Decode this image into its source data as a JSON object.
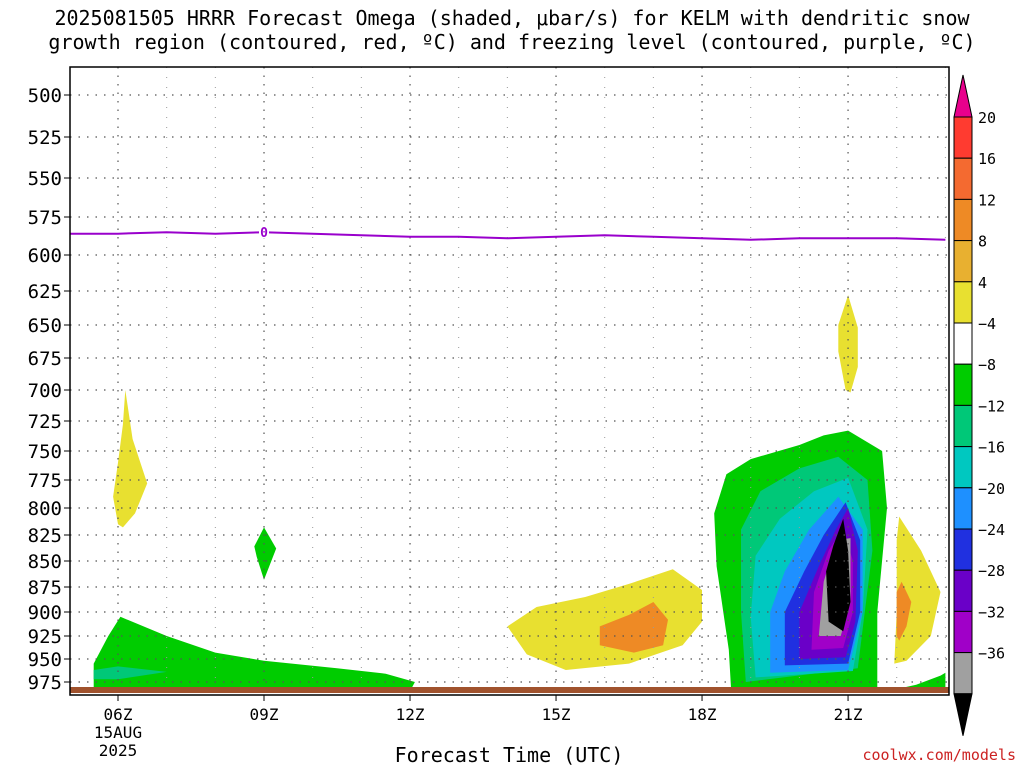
{
  "title": {
    "line1": "2025081505 HRRR Forecast Omega (shaded, μbar/s) for KELM with dendritic snow",
    "line2": "growth region (contoured, red, ºC) and freezing level (contoured, purple, ºC)"
  },
  "xlabel": "Forecast Time (UTC)",
  "credit": "coolwx.com/models",
  "chart_data": {
    "type": "area",
    "y_axis": {
      "label": "",
      "ticks": [
        500,
        525,
        550,
        575,
        600,
        625,
        650,
        675,
        700,
        725,
        750,
        775,
        800,
        825,
        850,
        875,
        900,
        925,
        950,
        975
      ],
      "range": [
        485,
        990
      ]
    },
    "x_axis": {
      "label": "Forecast Time (UTC)",
      "ticks": [
        {
          "hour": 6,
          "label": "06Z",
          "sub1": "15AUG",
          "sub2": "2025"
        },
        {
          "hour": 9,
          "label": "09Z",
          "sub1": "",
          "sub2": ""
        },
        {
          "hour": 12,
          "label": "12Z",
          "sub1": "",
          "sub2": ""
        },
        {
          "hour": 15,
          "label": "15Z",
          "sub1": "",
          "sub2": ""
        },
        {
          "hour": 18,
          "label": "18Z",
          "sub1": "",
          "sub2": ""
        },
        {
          "hour": 21,
          "label": "21Z",
          "sub1": "",
          "sub2": ""
        }
      ],
      "range": [
        5,
        23
      ]
    },
    "colorbar": {
      "label_values": [
        20,
        16,
        12,
        8,
        4,
        -4,
        -8,
        -12,
        -16,
        -20,
        -24,
        -28,
        -32,
        -36
      ],
      "labels": [
        "20",
        "16",
        "12",
        "8",
        "4",
        "−4",
        "−8",
        "−12",
        "−16",
        "−20",
        "−24",
        "−28",
        "−32",
        "−36"
      ],
      "colors": [
        "#e8008c",
        "#ff3b30",
        "#f46a30",
        "#ee8a25",
        "#e8b030",
        "#e8e030",
        "#ffffff",
        "#00cc00",
        "#00c878",
        "#00c8c0",
        "#1e90ff",
        "#2030e0",
        "#6a00c8",
        "#a000c8",
        "#a0a0a0",
        "#000000"
      ]
    },
    "freezing_level": {
      "label": "0",
      "label_at_hour": 9,
      "color": "#9900cc",
      "hours": [
        5,
        6,
        7,
        8,
        9,
        10,
        11,
        12,
        13,
        14,
        15,
        16,
        17,
        18,
        19,
        20,
        21,
        22,
        23
      ],
      "pressure": [
        586,
        586,
        585,
        586,
        585,
        586,
        587,
        588,
        588,
        589,
        588,
        587,
        588,
        589,
        590,
        589,
        589,
        589,
        590
      ]
    },
    "terrain_color": "#a0522d",
    "omega_regions": [
      {
        "name": "rise-06z-upper",
        "value": 6,
        "points": [
          [
            6.0,
            815
          ],
          [
            5.9,
            790
          ],
          [
            6.0,
            760
          ],
          [
            6.1,
            728
          ],
          [
            6.15,
            700
          ],
          [
            6.3,
            740
          ],
          [
            6.6,
            778
          ],
          [
            6.35,
            805
          ],
          [
            6.1,
            818
          ]
        ]
      },
      {
        "name": "sink-09z",
        "value": -6,
        "points": [
          [
            9.0,
            818
          ],
          [
            9.25,
            838
          ],
          [
            9.1,
            856
          ],
          [
            9.0,
            868
          ],
          [
            8.85,
            846
          ],
          [
            8.8,
            836
          ]
        ]
      },
      {
        "name": "sink-low-levels",
        "value": -6,
        "points": [
          [
            5.5,
            983
          ],
          [
            5.5,
            955
          ],
          [
            5.8,
            925
          ],
          [
            6.05,
            905
          ],
          [
            7.0,
            925
          ],
          [
            8.0,
            943
          ],
          [
            9.0,
            952
          ],
          [
            10.5,
            960
          ],
          [
            11.5,
            966
          ],
          [
            12.1,
            975
          ],
          [
            12.0,
            985
          ],
          [
            9.0,
            985
          ],
          [
            6.0,
            984
          ]
        ]
      },
      {
        "name": "sink-low-levels-core",
        "value": -10,
        "points": [
          [
            5.5,
            962
          ],
          [
            6.0,
            958
          ],
          [
            7.0,
            964
          ],
          [
            6.0,
            972
          ],
          [
            5.5,
            972
          ]
        ]
      },
      {
        "name": "rise-15z-17z",
        "value": 6,
        "points": [
          [
            14.0,
            915
          ],
          [
            14.6,
            895
          ],
          [
            15.6,
            885
          ],
          [
            16.5,
            872
          ],
          [
            17.4,
            858
          ],
          [
            18.0,
            878
          ],
          [
            18.0,
            910
          ],
          [
            17.6,
            935
          ],
          [
            16.5,
            955
          ],
          [
            15.2,
            962
          ],
          [
            14.4,
            945
          ]
        ]
      },
      {
        "name": "rise-15z-17z-core",
        "value": 10,
        "points": [
          [
            15.9,
            915
          ],
          [
            16.5,
            903
          ],
          [
            17.0,
            890
          ],
          [
            17.3,
            908
          ],
          [
            17.2,
            935
          ],
          [
            16.6,
            943
          ],
          [
            15.9,
            935
          ]
        ]
      },
      {
        "name": "rise-21z-upper",
        "value": 6,
        "points": [
          [
            20.95,
            700
          ],
          [
            20.8,
            670
          ],
          [
            20.8,
            650
          ],
          [
            21.0,
            628
          ],
          [
            21.2,
            652
          ],
          [
            21.2,
            682
          ],
          [
            21.05,
            702
          ]
        ]
      },
      {
        "name": "sink-18z-22z-outer",
        "value": -6,
        "points": [
          [
            18.6,
            985
          ],
          [
            18.55,
            940
          ],
          [
            18.3,
            855
          ],
          [
            18.25,
            805
          ],
          [
            18.5,
            770
          ],
          [
            19.0,
            757
          ],
          [
            20.0,
            745
          ],
          [
            20.5,
            737
          ],
          [
            21.0,
            733
          ],
          [
            21.7,
            750
          ],
          [
            21.8,
            800
          ],
          [
            21.6,
            900
          ],
          [
            21.6,
            985
          ],
          [
            19.5,
            985
          ]
        ]
      },
      {
        "name": "sink-18z-22z-l2",
        "value": -10,
        "points": [
          [
            18.9,
            975
          ],
          [
            18.8,
            900
          ],
          [
            18.8,
            820
          ],
          [
            19.2,
            785
          ],
          [
            20.0,
            765
          ],
          [
            20.8,
            755
          ],
          [
            21.4,
            775
          ],
          [
            21.5,
            840
          ],
          [
            21.2,
            960
          ]
        ]
      },
      {
        "name": "sink-18z-22z-l3",
        "value": -14,
        "points": [
          [
            19.1,
            970
          ],
          [
            19.0,
            905
          ],
          [
            19.1,
            845
          ],
          [
            19.6,
            810
          ],
          [
            20.3,
            785
          ],
          [
            21.0,
            773
          ],
          [
            21.4,
            820
          ],
          [
            21.3,
            900
          ],
          [
            21.1,
            963
          ]
        ]
      },
      {
        "name": "sink-18z-22z-l4",
        "value": -18,
        "points": [
          [
            19.4,
            965
          ],
          [
            19.4,
            900
          ],
          [
            19.7,
            860
          ],
          [
            20.2,
            820
          ],
          [
            20.8,
            790
          ],
          [
            21.3,
            820
          ],
          [
            21.3,
            900
          ],
          [
            21.0,
            962
          ]
        ]
      },
      {
        "name": "sink-18z-22z-l5",
        "value": -22,
        "points": [
          [
            19.7,
            957
          ],
          [
            19.7,
            900
          ],
          [
            20.1,
            860
          ],
          [
            20.5,
            825
          ],
          [
            20.95,
            795
          ],
          [
            21.25,
            830
          ],
          [
            21.25,
            900
          ],
          [
            21.0,
            955
          ]
        ]
      },
      {
        "name": "sink-18z-22z-l6",
        "value": -26,
        "points": [
          [
            20.0,
            950
          ],
          [
            20.0,
            900
          ],
          [
            20.4,
            855
          ],
          [
            20.75,
            820
          ],
          [
            21.0,
            800
          ],
          [
            21.2,
            840
          ],
          [
            21.15,
            910
          ],
          [
            20.95,
            948
          ]
        ]
      },
      {
        "name": "sink-18z-22z-l7",
        "value": -30,
        "points": [
          [
            20.25,
            940
          ],
          [
            20.3,
            880
          ],
          [
            20.6,
            840
          ],
          [
            20.9,
            818
          ],
          [
            21.1,
            850
          ],
          [
            21.1,
            900
          ],
          [
            20.9,
            938
          ]
        ]
      },
      {
        "name": "sink-18z-22z-l8",
        "value": -34,
        "points": [
          [
            20.4,
            925
          ],
          [
            20.5,
            870
          ],
          [
            20.75,
            830
          ],
          [
            21.05,
            828
          ],
          [
            21.05,
            890
          ],
          [
            20.85,
            925
          ]
        ]
      },
      {
        "name": "sink-18z-22z-core",
        "value": -38,
        "points": [
          [
            20.6,
            910
          ],
          [
            20.55,
            860
          ],
          [
            20.7,
            835
          ],
          [
            20.9,
            810
          ],
          [
            21.0,
            840
          ],
          [
            21.05,
            890
          ],
          [
            20.9,
            920
          ]
        ]
      },
      {
        "name": "rise-22z",
        "value": 6,
        "points": [
          [
            21.95,
            955
          ],
          [
            22.0,
            900
          ],
          [
            22.0,
            830
          ],
          [
            22.05,
            808
          ],
          [
            22.5,
            840
          ],
          [
            22.9,
            880
          ],
          [
            22.7,
            925
          ],
          [
            22.2,
            952
          ]
        ]
      },
      {
        "name": "rise-22z-core",
        "value": 10,
        "points": [
          [
            22.0,
            925
          ],
          [
            22.0,
            880
          ],
          [
            22.1,
            870
          ],
          [
            22.3,
            890
          ],
          [
            22.2,
            915
          ],
          [
            22.05,
            930
          ]
        ]
      },
      {
        "name": "sink-23z-surface",
        "value": -6,
        "points": [
          [
            21.8,
            985
          ],
          [
            22.4,
            978
          ],
          [
            22.9,
            968
          ],
          [
            23.0,
            965
          ],
          [
            23.0,
            985
          ]
        ]
      }
    ]
  }
}
